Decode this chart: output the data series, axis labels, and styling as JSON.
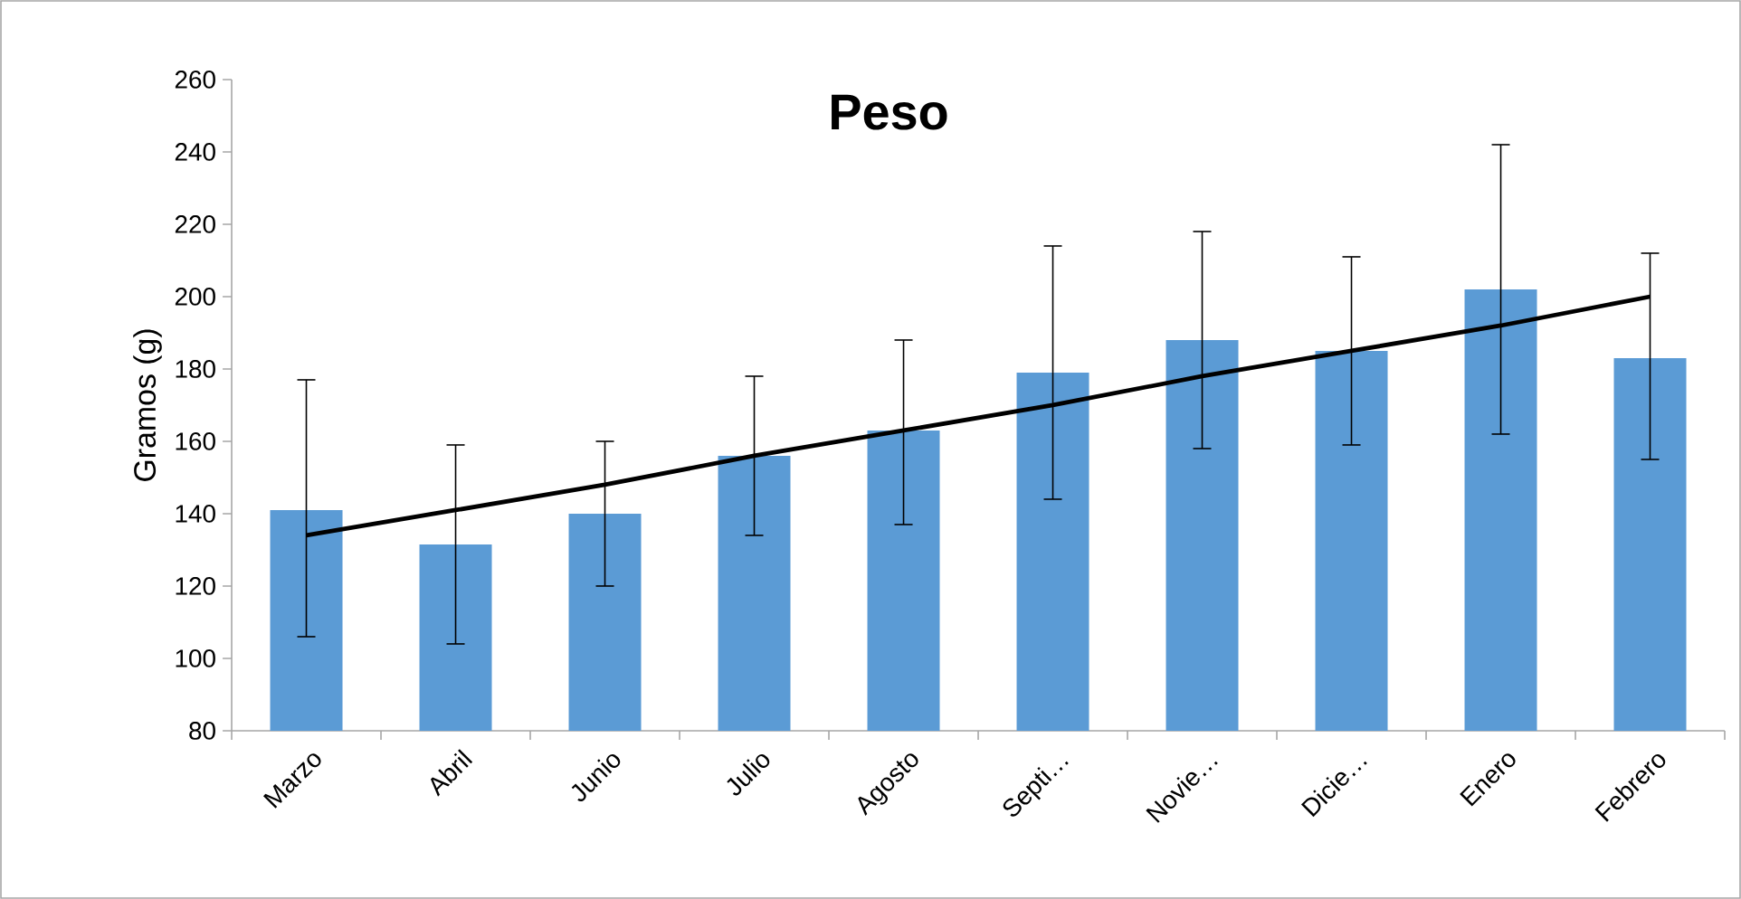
{
  "chart_data": {
    "type": "bar",
    "title": "Peso",
    "ylabel": "Gramos (g)",
    "categories": [
      "Marzo",
      "Abril",
      "Junio",
      "Julio",
      "Agosto",
      "Septi…",
      "Novie…",
      "Dicie…",
      "Enero",
      "Febrero"
    ],
    "ylim": [
      80,
      260
    ],
    "yticks": [
      80,
      100,
      120,
      140,
      160,
      180,
      200,
      220,
      240,
      260
    ],
    "grid": false,
    "series": [
      {
        "color": "#5b9bd5",
        "values": [
          141,
          131.5,
          140,
          156,
          163,
          179,
          188,
          185,
          202,
          183
        ],
        "errors": [
          [
            106,
            177
          ],
          [
            104,
            159
          ],
          [
            120,
            160
          ],
          [
            134,
            178
          ],
          [
            137,
            188
          ],
          [
            144,
            214
          ],
          [
            158,
            218
          ],
          [
            159,
            211
          ],
          [
            162,
            242
          ],
          [
            155,
            212
          ]
        ]
      },
      {
        "type": "line",
        "color": "#000000",
        "marker": "none",
        "line_style": "solid",
        "values": [
          134,
          141,
          148,
          156,
          163,
          170,
          178,
          185,
          192,
          200
        ]
      }
    ]
  }
}
